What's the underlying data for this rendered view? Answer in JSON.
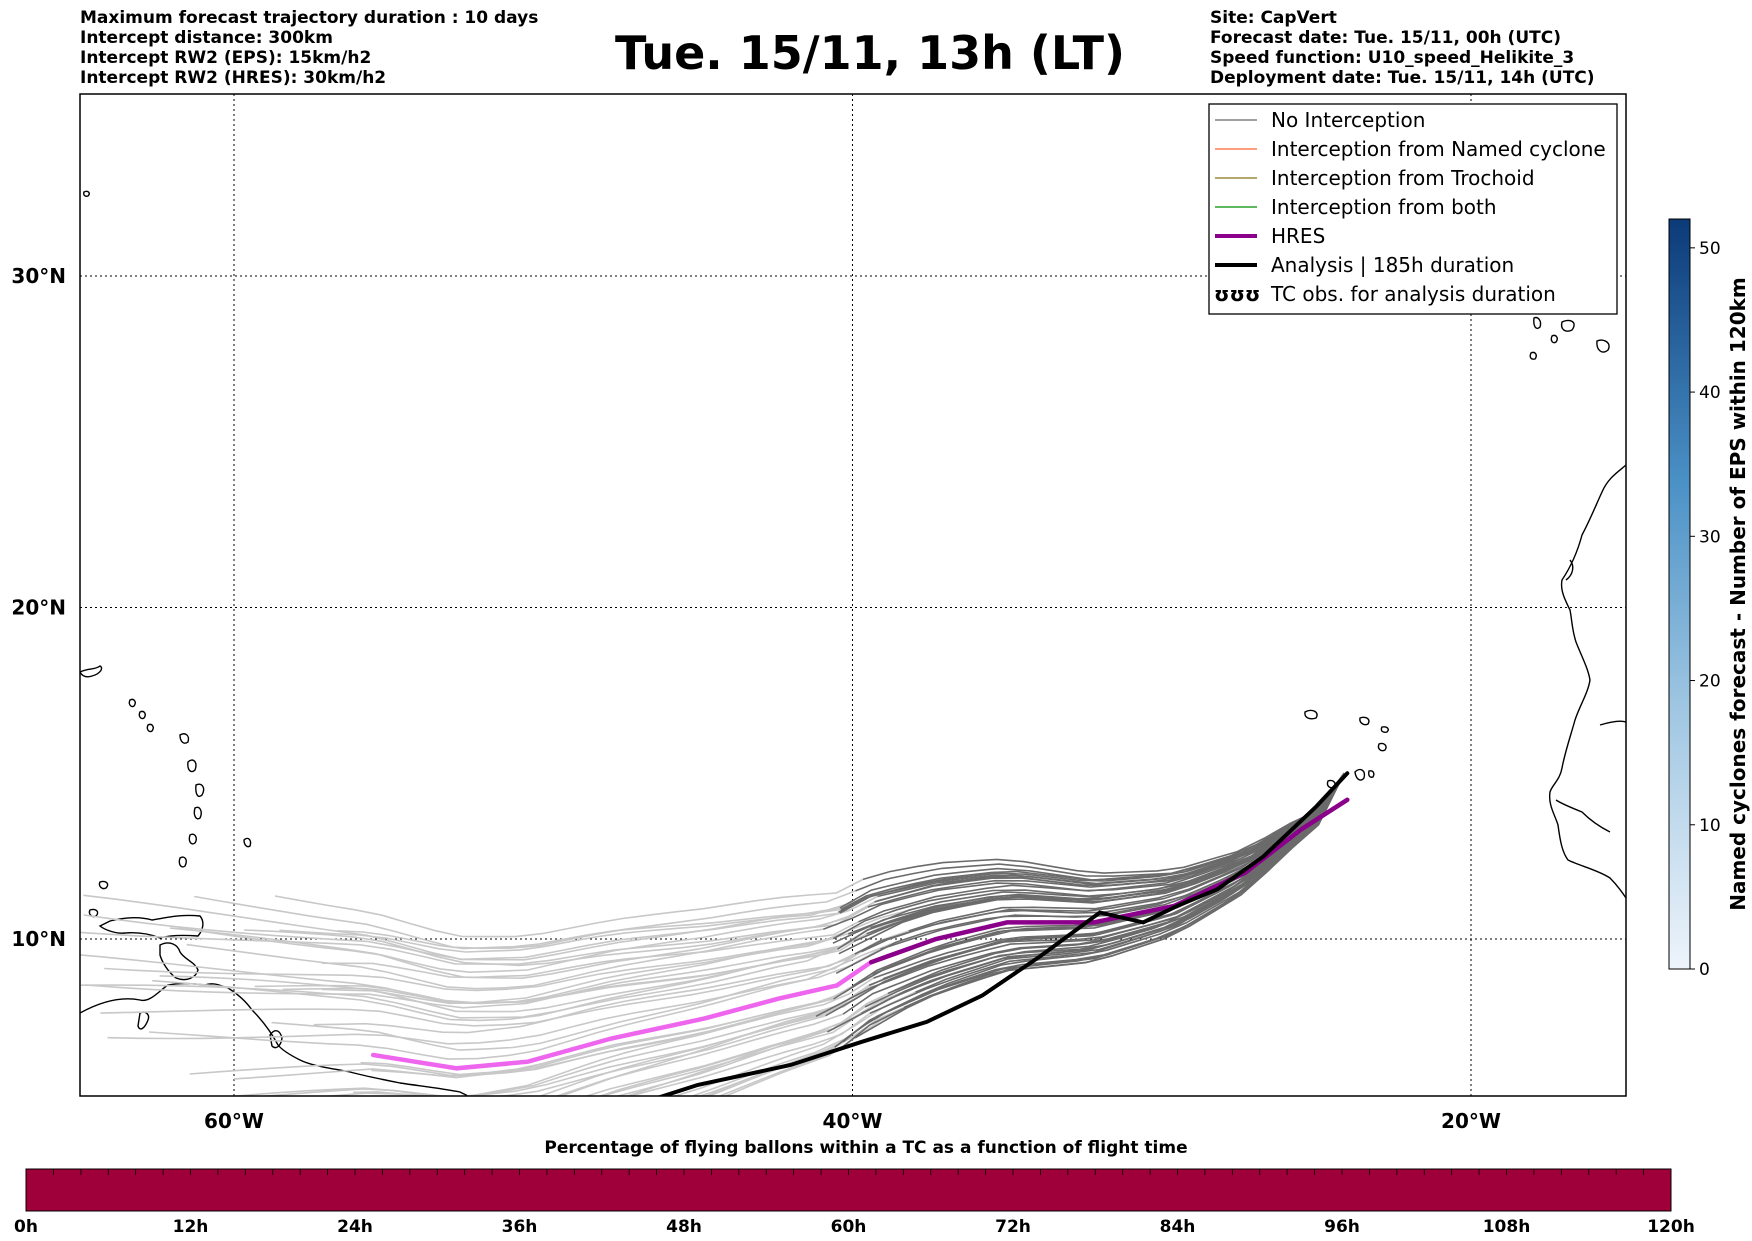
{
  "header": {
    "left": [
      "Maximum forecast trajectory duration : 10 days",
      "Intercept distance: 300km",
      "Intercept RW2 (EPS):  15km/h2",
      "Intercept RW2 (HRES): 30km/h2"
    ],
    "title": "Tue. 15/11, 13h (LT)",
    "right": [
      "Site: CapVert",
      "Forecast date: Tue. 15/11, 00h (UTC)",
      "Speed function: U10_speed_Helikite_3",
      "Deployment date: Tue. 15/11, 14h (UTC)"
    ]
  },
  "map": {
    "lon_ticks": [
      {
        "lon": -60,
        "label": "60°W"
      },
      {
        "lon": -40,
        "label": "40°W"
      },
      {
        "lon": -20,
        "label": "20°W"
      }
    ],
    "lat_ticks": [
      {
        "lat": 10,
        "label": "10°N"
      },
      {
        "lat": 20,
        "label": "20°N"
      },
      {
        "lat": 30,
        "label": "30°N"
      }
    ],
    "grid": "dotted",
    "launch_site": {
      "lon": -24.1,
      "lat": 15.0
    }
  },
  "legend": {
    "placement": "top-right",
    "items": [
      {
        "key": "no_interception",
        "label": "No Interception",
        "color": "#808080",
        "style": "line"
      },
      {
        "key": "named",
        "label": "Interception from Named cyclone",
        "color": "#ff7f50",
        "style": "line"
      },
      {
        "key": "trochoid",
        "label": "Interception from Trochoid",
        "color": "#9a8a3a",
        "style": "line"
      },
      {
        "key": "both",
        "label": "Interception from both",
        "color": "#2ca02c",
        "style": "line"
      },
      {
        "key": "hres",
        "label": "HRES",
        "color": "#8b008b",
        "style": "thick"
      },
      {
        "key": "analysis",
        "label": "Analysis | 185h duration",
        "color": "#000000",
        "style": "thick"
      },
      {
        "key": "tc_obs",
        "label": "TC obs. for analysis duration",
        "color": "#000000",
        "style": "symbol"
      }
    ]
  },
  "colorbar": {
    "label": "Named cyclones forecast - Number of EPS within 120km",
    "ticks": [
      0,
      10,
      20,
      30,
      40,
      50
    ],
    "min": 0,
    "max": 52,
    "color_low": "#e6eff9",
    "color_high": "#0b3a78"
  },
  "time_bar": {
    "label": "Percentage of flying ballons within a TC as a function of flight time",
    "ticks": [
      "0h",
      "12h",
      "24h",
      "36h",
      "48h",
      "60h",
      "72h",
      "84h",
      "96h",
      "108h",
      "120h"
    ],
    "color": "#a0003a"
  },
  "chart_data": {
    "type": "line",
    "hres_track": {
      "lon": [
        -24.0,
        -25.5,
        -27.3,
        -29.6,
        -32.2,
        -35.0,
        -37.3,
        -39.4,
        -40.5,
        -42.4,
        -44.8,
        -47.8,
        -50.5,
        -52.8,
        -55.5
      ],
      "lat": [
        14.2,
        13.3,
        12.0,
        11.0,
        10.5,
        10.5,
        10.0,
        9.3,
        8.6,
        8.2,
        7.6,
        7.0,
        6.3,
        6.1,
        6.5
      ],
      "color": "#8b008b",
      "fade_color": "#ee66ee"
    },
    "analysis_track": {
      "lon": [
        -24.0,
        -25.0,
        -26.7,
        -28.2,
        -29.5,
        -30.6,
        -32.0,
        -33.9,
        -35.8,
        -37.6,
        -39.7,
        -42.0,
        -45.0,
        -47.0
      ],
      "lat": [
        15.0,
        14.0,
        12.5,
        11.5,
        11.0,
        10.5,
        10.8,
        9.5,
        8.3,
        7.5,
        6.9,
        6.2,
        5.6,
        5.0
      ],
      "color": "#000000"
    }
  }
}
